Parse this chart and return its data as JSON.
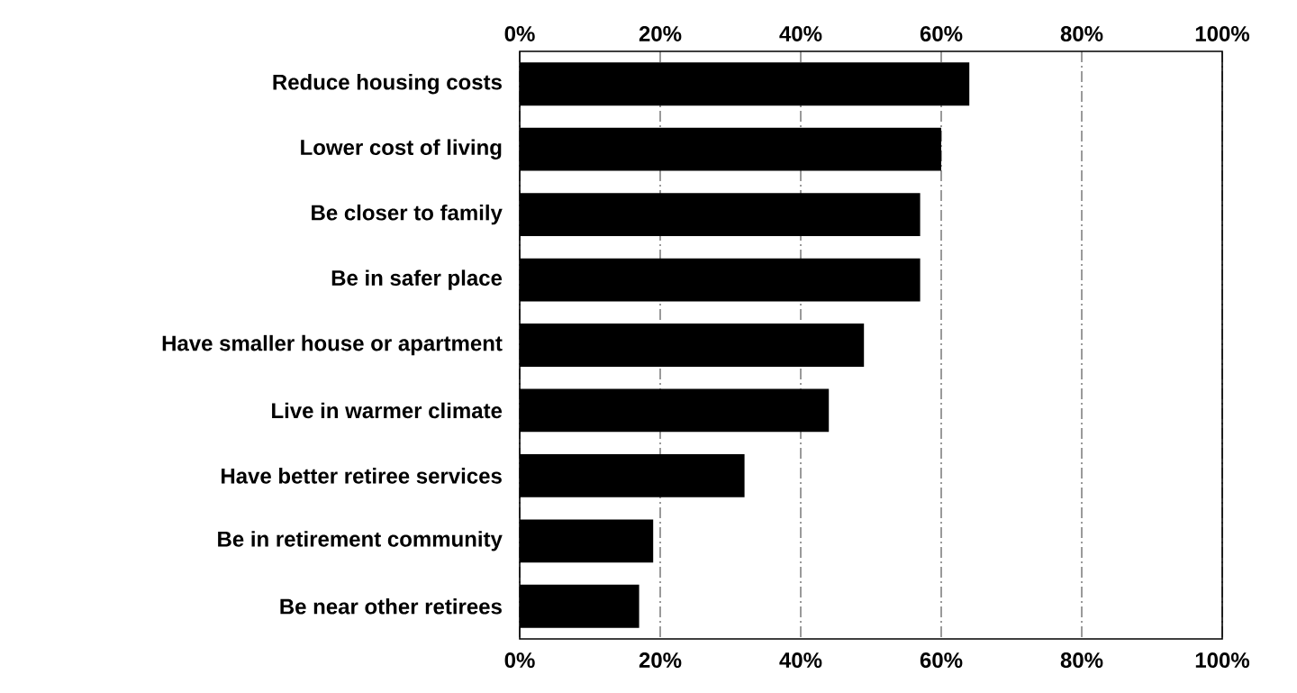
{
  "chart_data": {
    "type": "bar",
    "orientation": "horizontal",
    "categories": [
      "Reduce housing costs",
      "Lower cost of living",
      "Be closer to family",
      "Be in safer place",
      "Have smaller house or apartment",
      "Live in warmer climate",
      "Have better retiree services",
      "Be in retirement community",
      "Be near other retirees"
    ],
    "values": [
      64,
      60,
      57,
      57,
      49,
      44,
      32,
      19,
      17
    ],
    "color": "#000000",
    "xlim": [
      0,
      100
    ],
    "xticks": [
      {
        "value": 0,
        "label": "0%"
      },
      {
        "value": 20,
        "label": "20%"
      },
      {
        "value": 40,
        "label": "40%"
      },
      {
        "value": 60,
        "label": "60%"
      },
      {
        "value": 80,
        "label": "80%"
      },
      {
        "value": 100,
        "label": "100%"
      }
    ],
    "x2lim": [
      0,
      100
    ],
    "x2ticks": [
      {
        "value": 0,
        "label": "0%"
      },
      {
        "value": 20,
        "label": "20%"
      },
      {
        "value": 40,
        "label": "40%"
      },
      {
        "value": 60,
        "label": "60%"
      },
      {
        "value": 80,
        "label": "80%"
      },
      {
        "value": 100,
        "label": "100%"
      }
    ],
    "grid": "x"
  }
}
